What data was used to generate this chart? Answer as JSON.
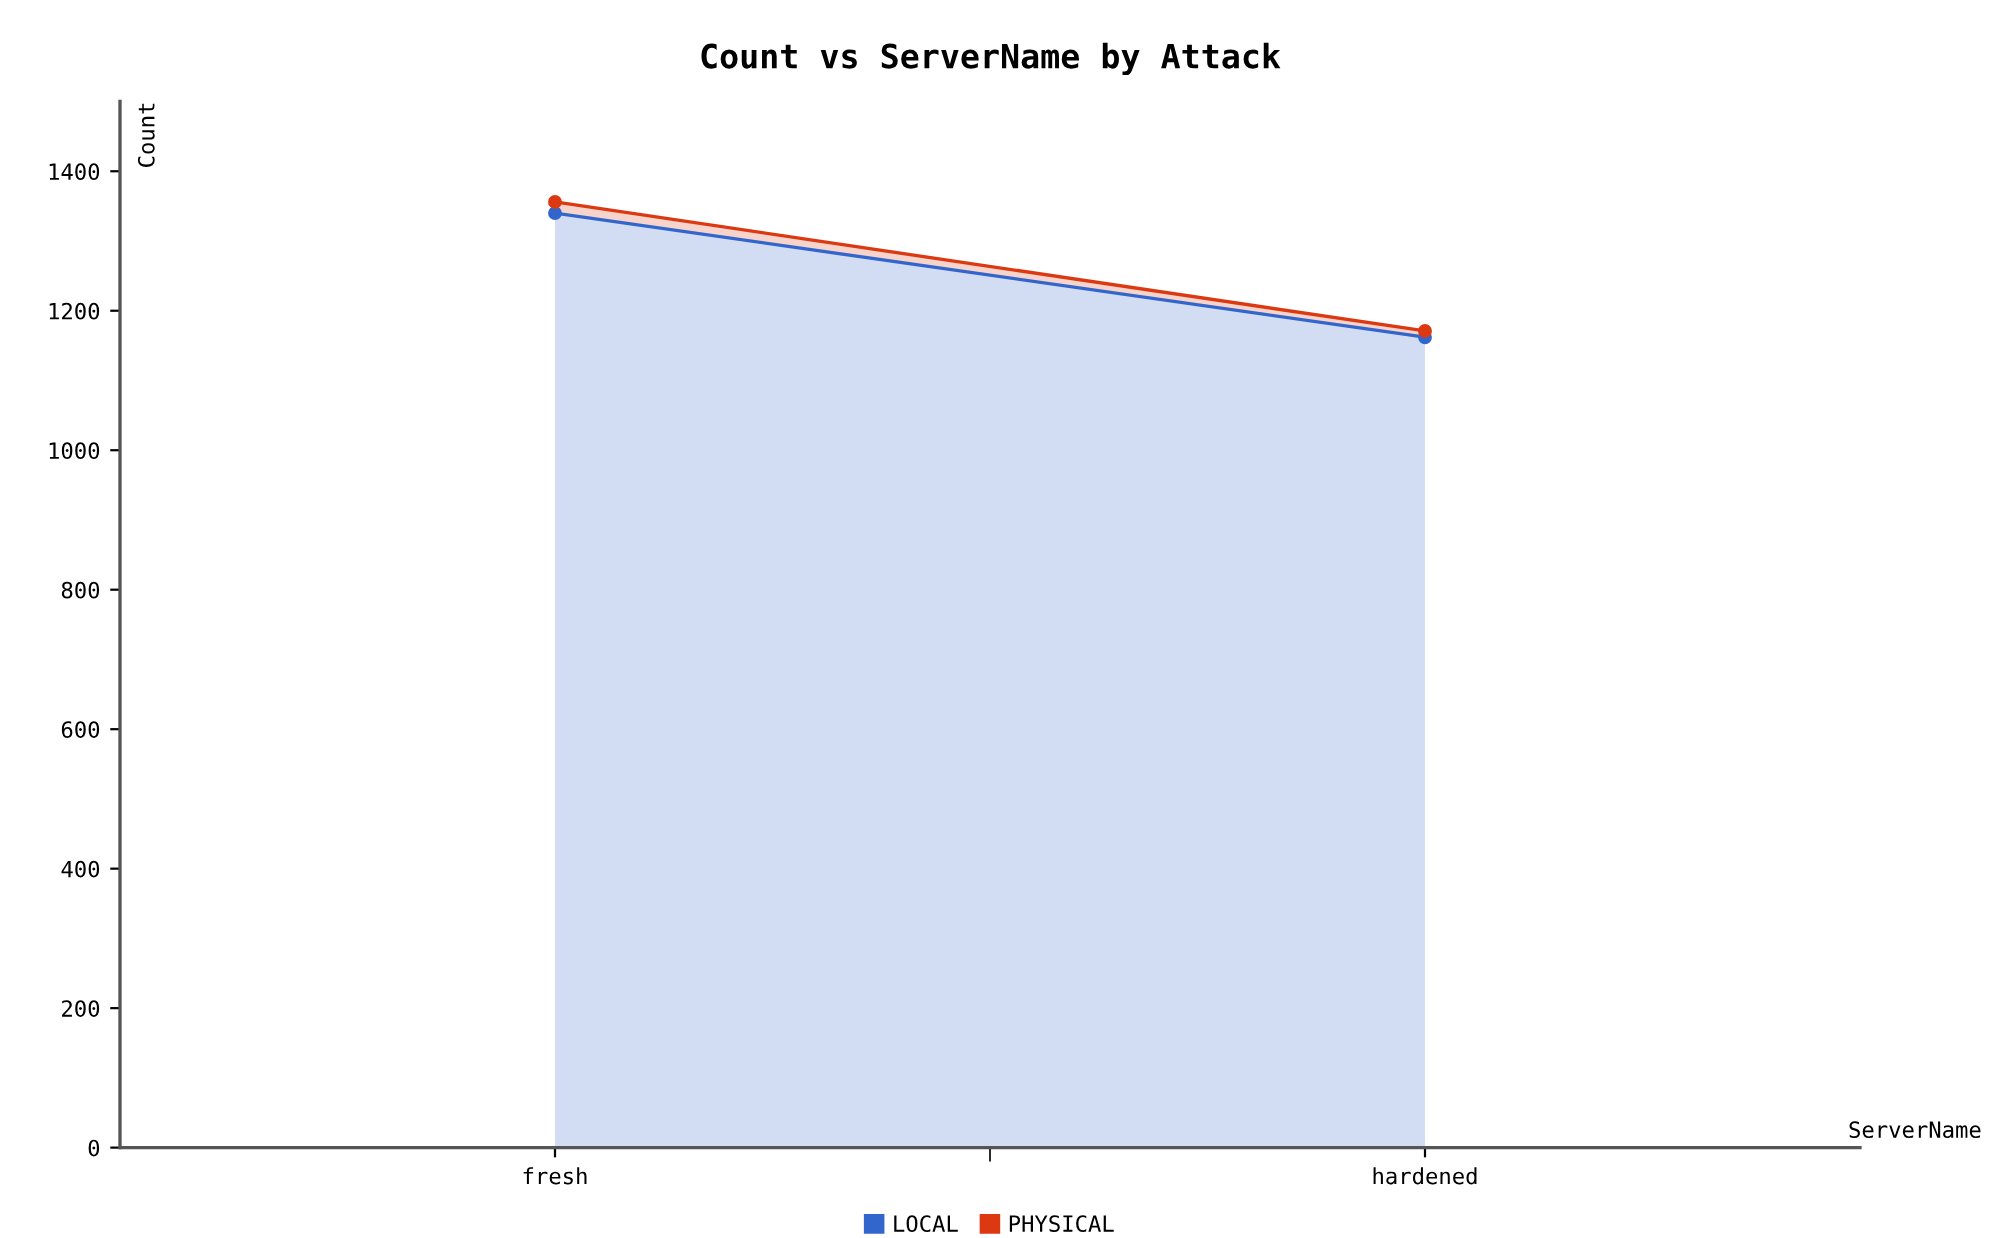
{
  "chart_data": {
    "type": "area",
    "title": "Count vs ServerName by Attack",
    "xlabel": "ServerName",
    "ylabel": "Count",
    "categories": [
      "fresh",
      "hardened"
    ],
    "stacked": true,
    "series": [
      {
        "name": "LOCAL",
        "color": "#3366cc",
        "values": [
          1340,
          1162
        ]
      },
      {
        "name": "PHYSICAL",
        "color": "#dc3912",
        "values": [
          16,
          9
        ]
      }
    ],
    "ylim": [
      0,
      1500
    ],
    "yticks": [
      0,
      200,
      400,
      600,
      800,
      1000,
      1200,
      1400
    ],
    "grid": false,
    "legend": "bottom",
    "marker": "circle"
  }
}
